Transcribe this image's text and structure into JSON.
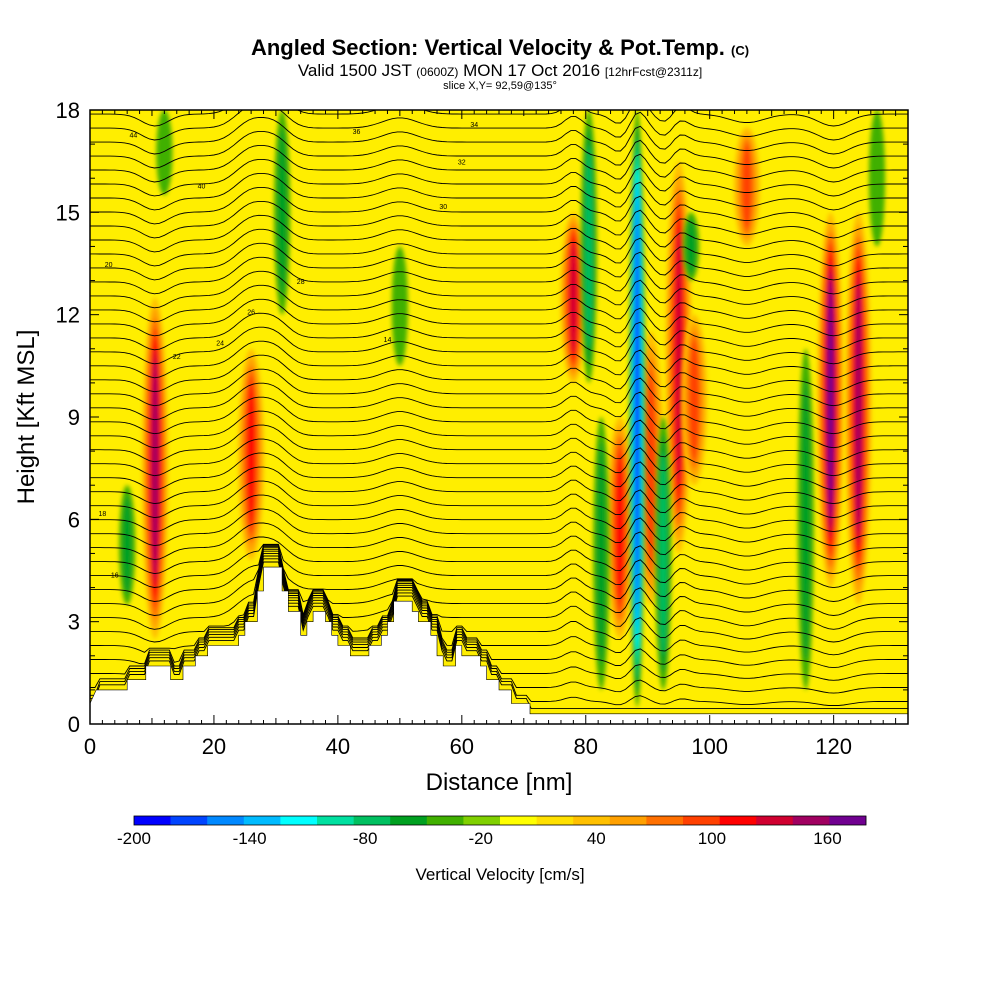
{
  "title": {
    "main": "Angled Section: Vertical Velocity & Pot.Temp.",
    "main_unit": "(C)",
    "valid_prefix": "Valid 1500 JST",
    "valid_z": "(0600Z)",
    "valid_date": "MON 17 Oct 2016",
    "valid_fcst": "[12hrFcst@2311z]",
    "slice": "slice X,Y= 92,59@135°"
  },
  "chart_data": {
    "type": "heatmap",
    "xlabel": "Distance [nm]",
    "ylabel": "Height [Kft MSL]",
    "xlim": [
      0,
      132
    ],
    "ylim": [
      0,
      18
    ],
    "x_ticks": [
      0,
      20,
      40,
      60,
      80,
      100,
      120
    ],
    "y_ticks": [
      0,
      3,
      6,
      9,
      12,
      15,
      18
    ],
    "colorbar": {
      "label": "Vertical Velocity [cm/s]",
      "range": [
        -200,
        180
      ],
      "tick_values": [
        -200,
        -140,
        -80,
        -20,
        40,
        100,
        160
      ],
      "colors": [
        "#0000ff",
        "#0044ff",
        "#0088ff",
        "#00bbff",
        "#00ffff",
        "#00e0a0",
        "#00c060",
        "#00a020",
        "#40b000",
        "#80d000",
        "#ffff00",
        "#ffe000",
        "#ffc000",
        "#ffa000",
        "#ff7000",
        "#ff4000",
        "#ff0000",
        "#d00030",
        "#a00060",
        "#700090"
      ]
    },
    "terrain_profile": [
      [
        0,
        0.6
      ],
      [
        1,
        1
      ],
      [
        6,
        1
      ],
      [
        6,
        1.3
      ],
      [
        9,
        1.3
      ],
      [
        9,
        1.7
      ],
      [
        13,
        1.7
      ],
      [
        13,
        1.3
      ],
      [
        15,
        1.3
      ],
      [
        15,
        1.7
      ],
      [
        17,
        1.7
      ],
      [
        17,
        2
      ],
      [
        19,
        2
      ],
      [
        19,
        2.3
      ],
      [
        24,
        2.3
      ],
      [
        24,
        2.6
      ],
      [
        25,
        2.6
      ],
      [
        25,
        3
      ],
      [
        27,
        3
      ],
      [
        27,
        3.9
      ],
      [
        28,
        3.9
      ],
      [
        28,
        4.6
      ],
      [
        31,
        4.6
      ],
      [
        31,
        3.9
      ],
      [
        32,
        3.9
      ],
      [
        32,
        3.3
      ],
      [
        34,
        3.3
      ],
      [
        34,
        2.6
      ],
      [
        35,
        2.6
      ],
      [
        35,
        3
      ],
      [
        36,
        3
      ],
      [
        36,
        3.3
      ],
      [
        38,
        3.3
      ],
      [
        38,
        3
      ],
      [
        39,
        3
      ],
      [
        39,
        2.6
      ],
      [
        40,
        2.6
      ],
      [
        40,
        2.3
      ],
      [
        42,
        2.3
      ],
      [
        42,
        2
      ],
      [
        45,
        2
      ],
      [
        45,
        2.3
      ],
      [
        47,
        2.3
      ],
      [
        47,
        2.6
      ],
      [
        48,
        2.6
      ],
      [
        48,
        3
      ],
      [
        49,
        3
      ],
      [
        49,
        3.6
      ],
      [
        52,
        3.6
      ],
      [
        52,
        3.3
      ],
      [
        53,
        3.3
      ],
      [
        53,
        3
      ],
      [
        55,
        3
      ],
      [
        55,
        2.6
      ],
      [
        56,
        2.6
      ],
      [
        56,
        2
      ],
      [
        57,
        2
      ],
      [
        57,
        1.7
      ],
      [
        59,
        1.7
      ],
      [
        59,
        2.3
      ],
      [
        60,
        2.3
      ],
      [
        60,
        2
      ],
      [
        63,
        2
      ],
      [
        63,
        1.7
      ],
      [
        64,
        1.7
      ],
      [
        64,
        1.3
      ],
      [
        66,
        1.3
      ],
      [
        66,
        1
      ],
      [
        68,
        1
      ],
      [
        68,
        0.6
      ],
      [
        71,
        0.6
      ],
      [
        71,
        0.3
      ],
      [
        132,
        0.3
      ]
    ],
    "updrafts": [
      {
        "x": 10.5,
        "zlo": 2.5,
        "zhi": 12.5,
        "w": 150
      },
      {
        "x": 26,
        "zlo": 4.8,
        "zhi": 11,
        "w": 110
      },
      {
        "x": 78,
        "zlo": 10,
        "zhi": 15,
        "w": 130
      },
      {
        "x": 85.5,
        "zlo": 2.5,
        "zhi": 9,
        "w": 120
      },
      {
        "x": 90.5,
        "zlo": 3.5,
        "zhi": 11.5,
        "w": 100
      },
      {
        "x": 95,
        "zlo": 5,
        "zhi": 16.5,
        "w": 140
      },
      {
        "x": 97.5,
        "zlo": 7,
        "zhi": 12,
        "w": 90
      },
      {
        "x": 106,
        "zlo": 14,
        "zhi": 17.5,
        "w": 90
      },
      {
        "x": 119.5,
        "zlo": 4,
        "zhi": 15,
        "w": 175
      },
      {
        "x": 124,
        "zlo": 3.5,
        "zhi": 15,
        "w": 150
      }
    ],
    "downdrafts": [
      {
        "x": 6,
        "zlo": 3.5,
        "zhi": 7,
        "w": -50
      },
      {
        "x": 12,
        "zlo": 15.5,
        "zhi": 18,
        "w": -40
      },
      {
        "x": 31,
        "zlo": 12,
        "zhi": 18,
        "w": -50
      },
      {
        "x": 50,
        "zlo": 10.5,
        "zhi": 14,
        "w": -40
      },
      {
        "x": 80.5,
        "zlo": 10,
        "zhi": 18,
        "w": -70
      },
      {
        "x": 82.5,
        "zlo": 1,
        "zhi": 9,
        "w": -60
      },
      {
        "x": 88.3,
        "zlo": 0.5,
        "zhi": 18,
        "w": -190
      },
      {
        "x": 92.5,
        "zlo": 1,
        "zhi": 9,
        "w": -80
      },
      {
        "x": 97,
        "zlo": 13,
        "zhi": 15,
        "w": -50
      },
      {
        "x": 115.5,
        "zlo": 1,
        "zhi": 11,
        "w": -60
      },
      {
        "x": 127,
        "zlo": 14,
        "zhi": 18,
        "w": -40
      }
    ],
    "isentrope_labels": [
      "44",
      "40",
      "36",
      "34",
      "32",
      "30",
      "28",
      "26",
      "24",
      "22",
      "20",
      "18",
      "16",
      "14"
    ]
  }
}
